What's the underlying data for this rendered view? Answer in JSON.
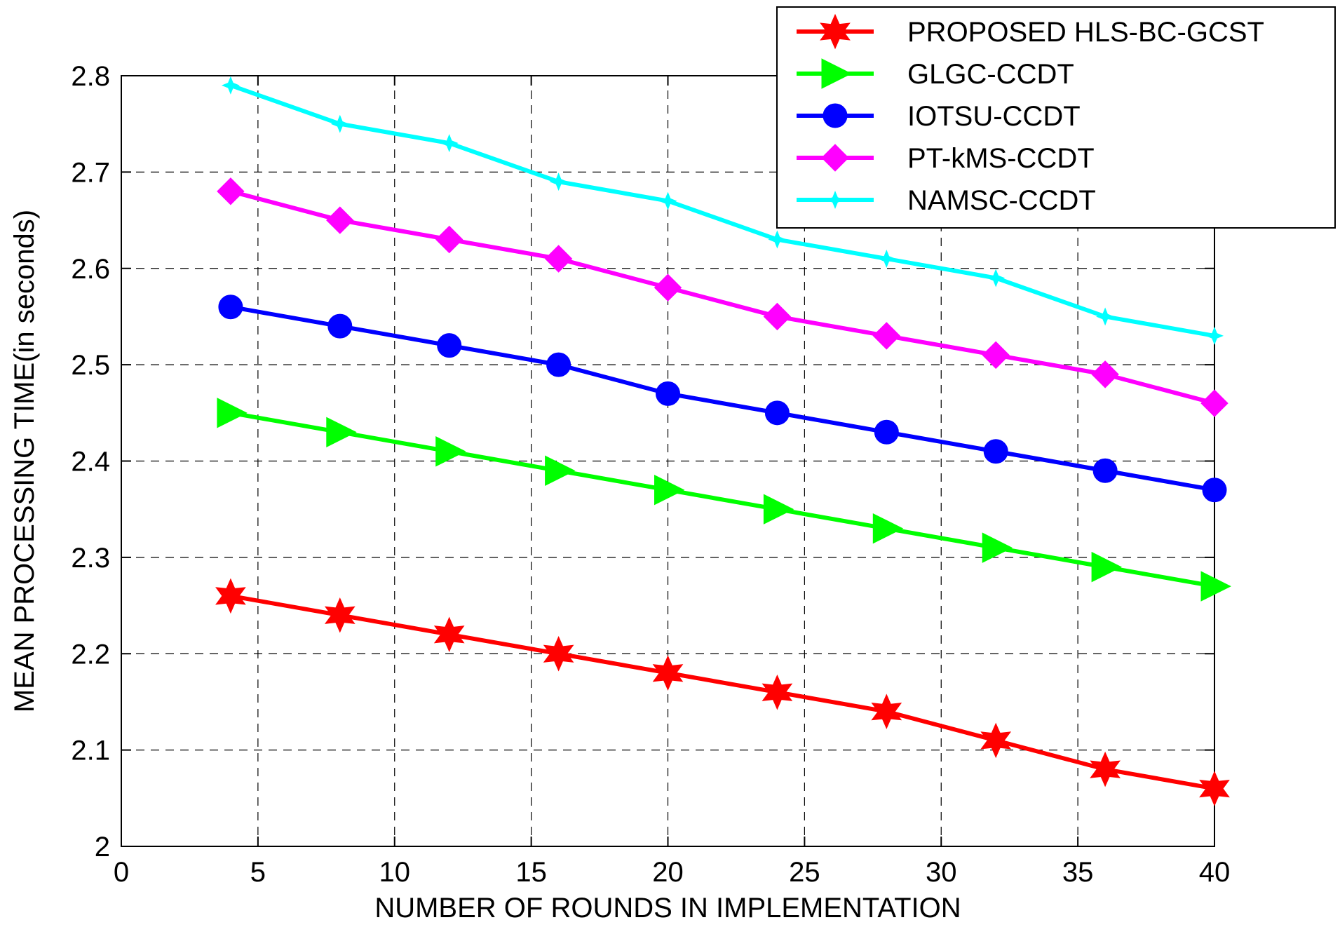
{
  "chart_data": {
    "type": "line",
    "title": "",
    "xlabel": "NUMBER OF ROUNDS IN IMPLEMENTATION",
    "ylabel": "MEAN PROCESSING TIME(in seconds)",
    "xlim": [
      0,
      40
    ],
    "ylim": [
      2.0,
      2.8
    ],
    "xticks": [
      0,
      5,
      10,
      15,
      20,
      25,
      30,
      35,
      40
    ],
    "yticks": [
      2.0,
      2.1,
      2.2,
      2.3,
      2.4,
      2.5,
      2.6,
      2.7,
      2.8
    ],
    "xtick_labels": [
      "0",
      "5",
      "10",
      "15",
      "20",
      "25",
      "30",
      "35",
      "40"
    ],
    "ytick_labels": [
      "2",
      "2.1",
      "2.2",
      "2.3",
      "2.4",
      "2.5",
      "2.6",
      "2.7",
      "2.8"
    ],
    "grid": true,
    "legend_position": "top-right",
    "x": [
      4,
      8,
      12,
      16,
      20,
      24,
      28,
      32,
      36,
      40
    ],
    "series": [
      {
        "name": "PROPOSED HLS-BC-GCST",
        "color": "#ff0000",
        "marker": "hexagram",
        "values": [
          2.26,
          2.24,
          2.22,
          2.2,
          2.18,
          2.16,
          2.14,
          2.11,
          2.08,
          2.06
        ]
      },
      {
        "name": "GLGC-CCDT",
        "color": "#00ff00",
        "marker": "triangle-right",
        "values": [
          2.45,
          2.43,
          2.41,
          2.39,
          2.37,
          2.35,
          2.33,
          2.31,
          2.29,
          2.27
        ]
      },
      {
        "name": "IOTSU-CCDT",
        "color": "#0000ff",
        "marker": "circle",
        "values": [
          2.56,
          2.54,
          2.52,
          2.5,
          2.47,
          2.45,
          2.43,
          2.41,
          2.39,
          2.37
        ]
      },
      {
        "name": "PT-kMS-CCDT",
        "color": "#ff00ff",
        "marker": "diamond",
        "values": [
          2.68,
          2.65,
          2.63,
          2.61,
          2.58,
          2.55,
          2.53,
          2.51,
          2.49,
          2.46
        ]
      },
      {
        "name": "NAMSC-CCDT",
        "color": "#00ffff",
        "marker": "star",
        "values": [
          2.79,
          2.75,
          2.73,
          2.69,
          2.67,
          2.63,
          2.61,
          2.59,
          2.55,
          2.53
        ]
      }
    ]
  }
}
